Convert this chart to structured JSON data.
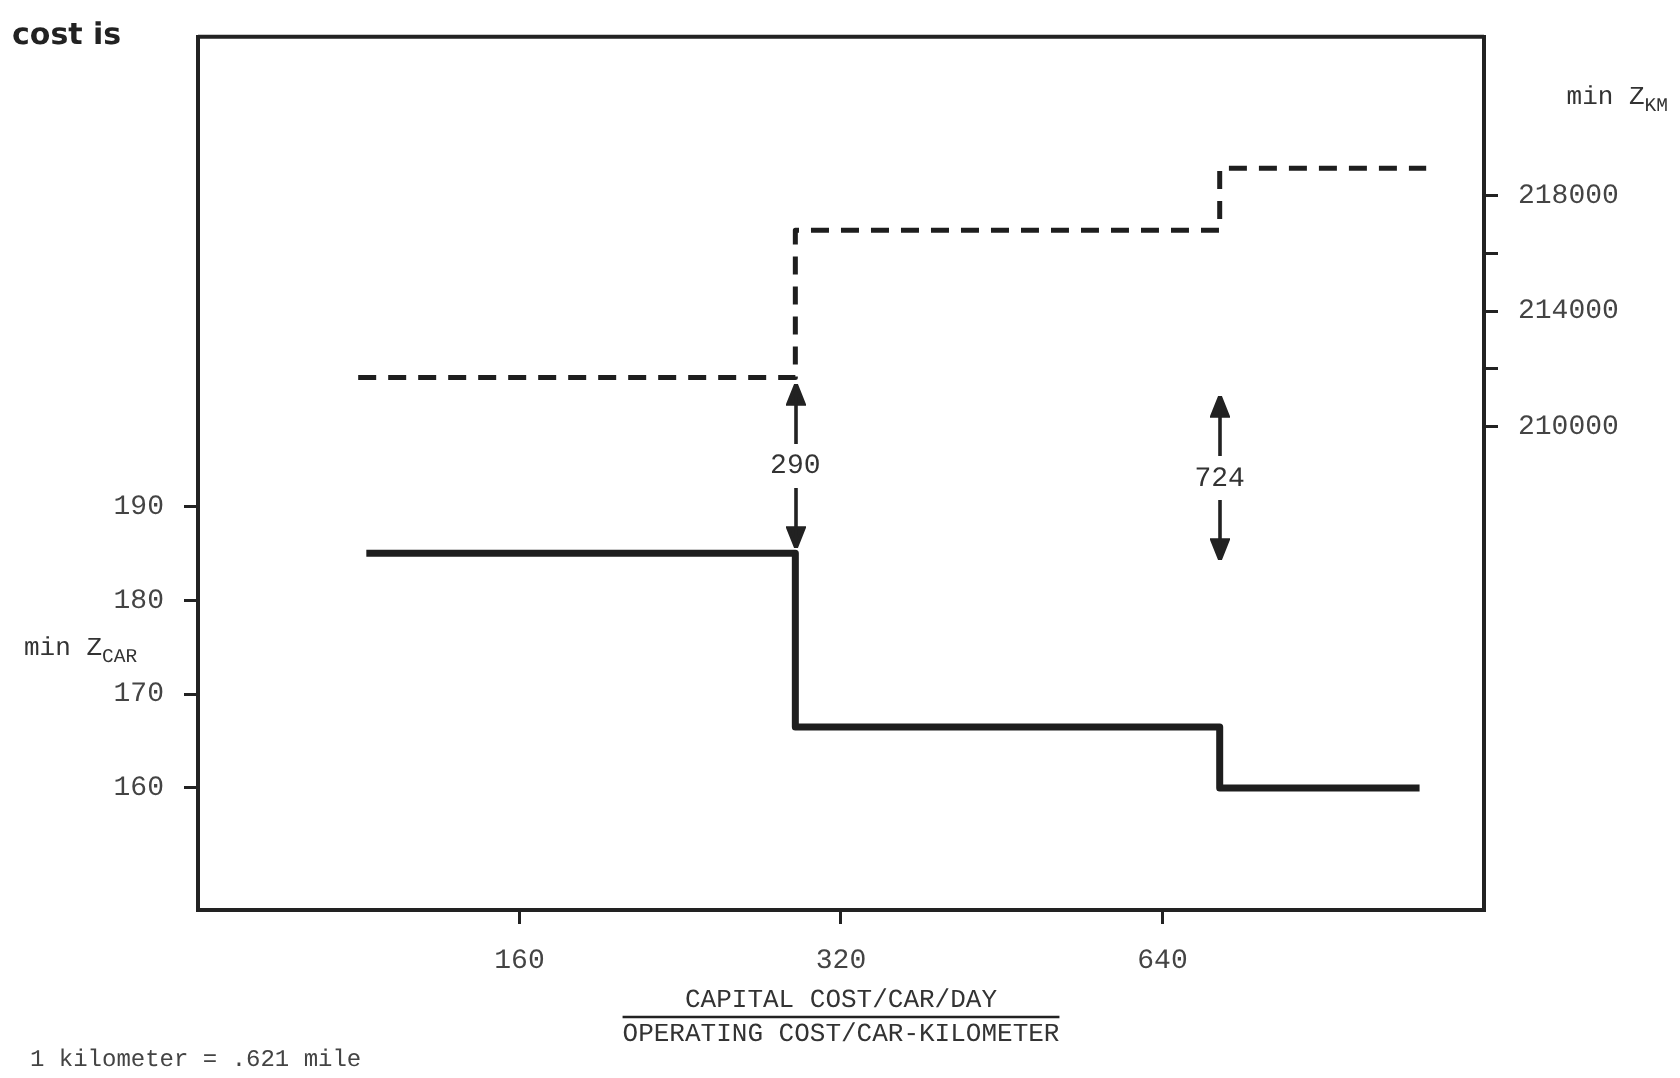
{
  "chart_data": {
    "type": "step",
    "xlabel": "CAPITAL COST/CAR/DAY\nOPERATING COST/CAR-KILOMETER",
    "ylabel": "min Z$_{CAR}$",
    "y2label": "min Z$_{KM}$",
    "log": "x",
    "xlim": [
      80,
      1280
    ],
    "xticks": [
      160,
      320,
      640
    ],
    "ylim": [
      147,
      240
    ],
    "yticks": [
      160,
      170,
      180,
      190
    ],
    "y2lim": [
      193250,
      223500
    ],
    "y2ticks": [
      210000,
      {
        "value": 212000,
        "label": null
      },
      214000,
      {
        "value": 216000,
        "label": null
      },
      218000
    ],
    "grid": false,
    "legend": false,
    "marker": "none",
    "series": [
      {
        "x": [
          115,
          290,
          724,
          1114
        ],
        "values": [
          185,
          166.5,
          160,
          160
        ],
        "color": "#1e1e1e",
        "line_style": "solid"
      },
      {
        "x": [
          113,
          290,
          724,
          1130
        ],
        "values": [
          211700,
          216800,
          218950,
          218950
        ],
        "color": "#1e1e1e",
        "line_style": "dashed",
        "axis": "y2"
      }
    ],
    "annotations": [
      "cost is",
      "290",
      "724",
      "1 kilometer = .621 mile"
    ]
  }
}
